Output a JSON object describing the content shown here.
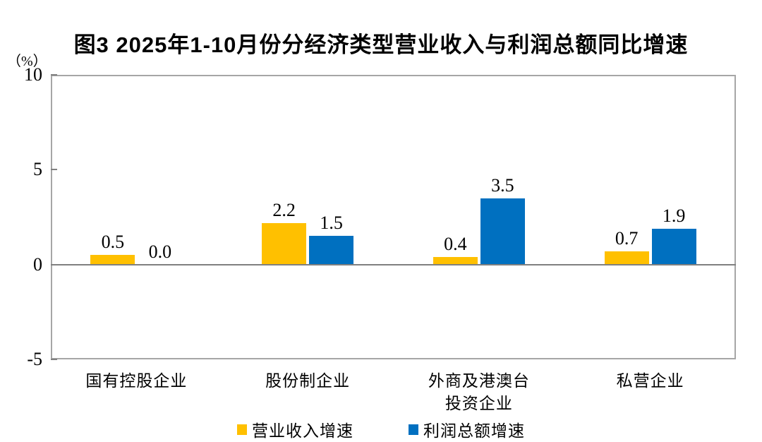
{
  "title": "图3 2025年1-10月份分经济类型营业收入与利润总额同比增速",
  "y_axis_unit": "（%）",
  "colors": {
    "revenue_bar": "#FFC000",
    "profit_bar": "#0070C0",
    "plot_border": "#a6a6a6",
    "zero_line": "#808080",
    "text": "#000000"
  },
  "chart_data": {
    "type": "bar",
    "title": "图3 2025年1-10月份分经济类型营业收入与利润总额同比增速",
    "xlabel": "",
    "ylabel": "（%）",
    "categories": [
      "国有控股企业",
      "股份制企业",
      "外商及港澳台\n投资企业",
      "私营企业"
    ],
    "series": [
      {
        "name": "营业收入增速",
        "color": "#FFC000",
        "values": [
          0.5,
          2.2,
          0.4,
          0.7
        ]
      },
      {
        "name": "利润总额增速",
        "color": "#0070C0",
        "values": [
          0.0,
          1.5,
          3.5,
          1.9
        ]
      }
    ],
    "value_label_decimals": 1,
    "ylim": [
      -5,
      10
    ],
    "yticks": [
      10,
      5,
      0,
      -5
    ],
    "grid": false,
    "legend_position": "bottom"
  }
}
